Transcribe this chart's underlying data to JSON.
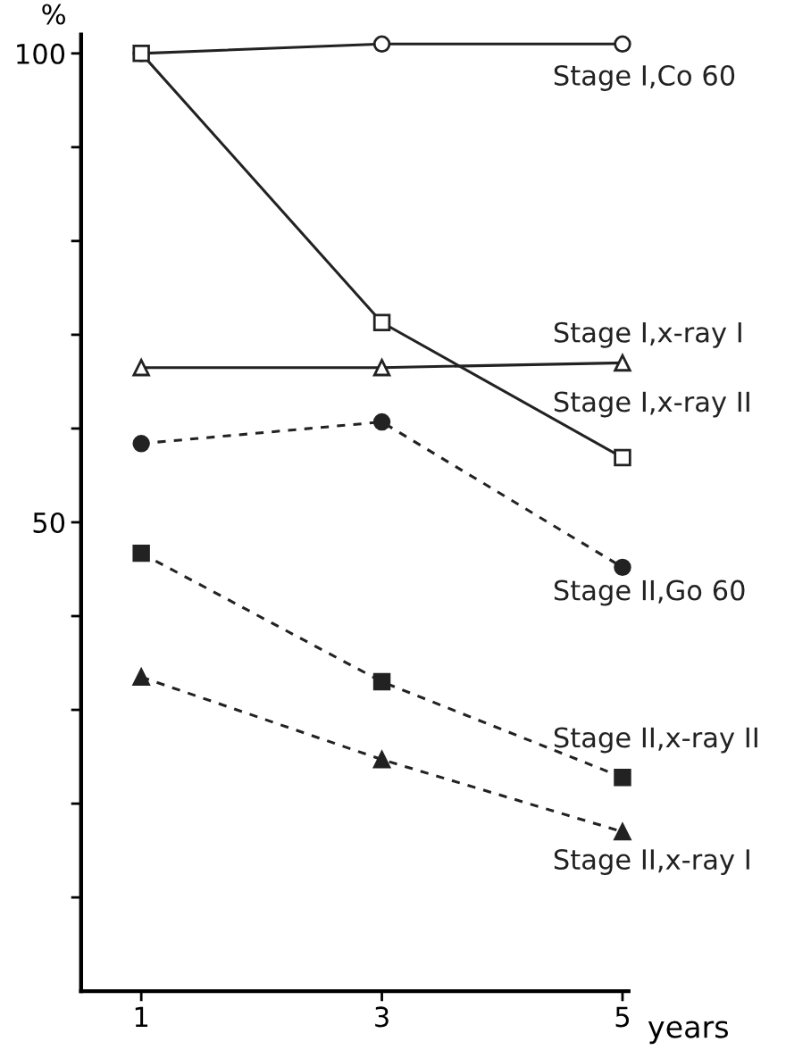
{
  "chart_data": {
    "type": "line",
    "ylabel": "%",
    "xlabel": "years",
    "x": [
      1,
      3,
      5
    ],
    "series": [
      {
        "name": "Stage I,Co 60",
        "color": "#222222",
        "values": [
          100,
          101,
          101
        ],
        "marker": "circle",
        "line_style": "solid"
      },
      {
        "name": "Stage I,x-ray I",
        "color": "#222222",
        "values": [
          66.5,
          66.5,
          67
        ],
        "marker": "triangle",
        "line_style": "solid"
      },
      {
        "name": "Stage I,x-ray II",
        "color": "#222222",
        "values": [
          100,
          71.3,
          56.9
        ],
        "marker": "square",
        "line_style": "solid"
      },
      {
        "name": "Stage II,Go 60",
        "color": "#222222",
        "values": [
          58.4,
          60.7,
          45.2
        ],
        "marker": "circle",
        "line_style": "dashed"
      },
      {
        "name": "Stage II,x-ray II",
        "color": "#222222",
        "values": [
          46.7,
          33,
          22.8
        ],
        "marker": "square",
        "line_style": "dashed"
      },
      {
        "name": "Stage II,x-ray I",
        "color": "#222222",
        "values": [
          33.5,
          24.7,
          17
        ],
        "marker": "triangle",
        "line_style": "dashed"
      }
    ],
    "xlim": [
      0.5,
      5.05
    ],
    "xticks": [
      1,
      3,
      5
    ],
    "ylim": [
      0,
      102
    ],
    "yticks": [
      {
        "value": 10,
        "label": null
      },
      {
        "value": 20,
        "label": null
      },
      {
        "value": 30,
        "label": null
      },
      {
        "value": 40,
        "label": null
      },
      50,
      {
        "value": 60,
        "label": null
      },
      {
        "value": 70,
        "label": null
      },
      {
        "value": 80,
        "label": null
      },
      {
        "value": 90,
        "label": null
      },
      100
    ],
    "grid": false,
    "legend": false
  }
}
